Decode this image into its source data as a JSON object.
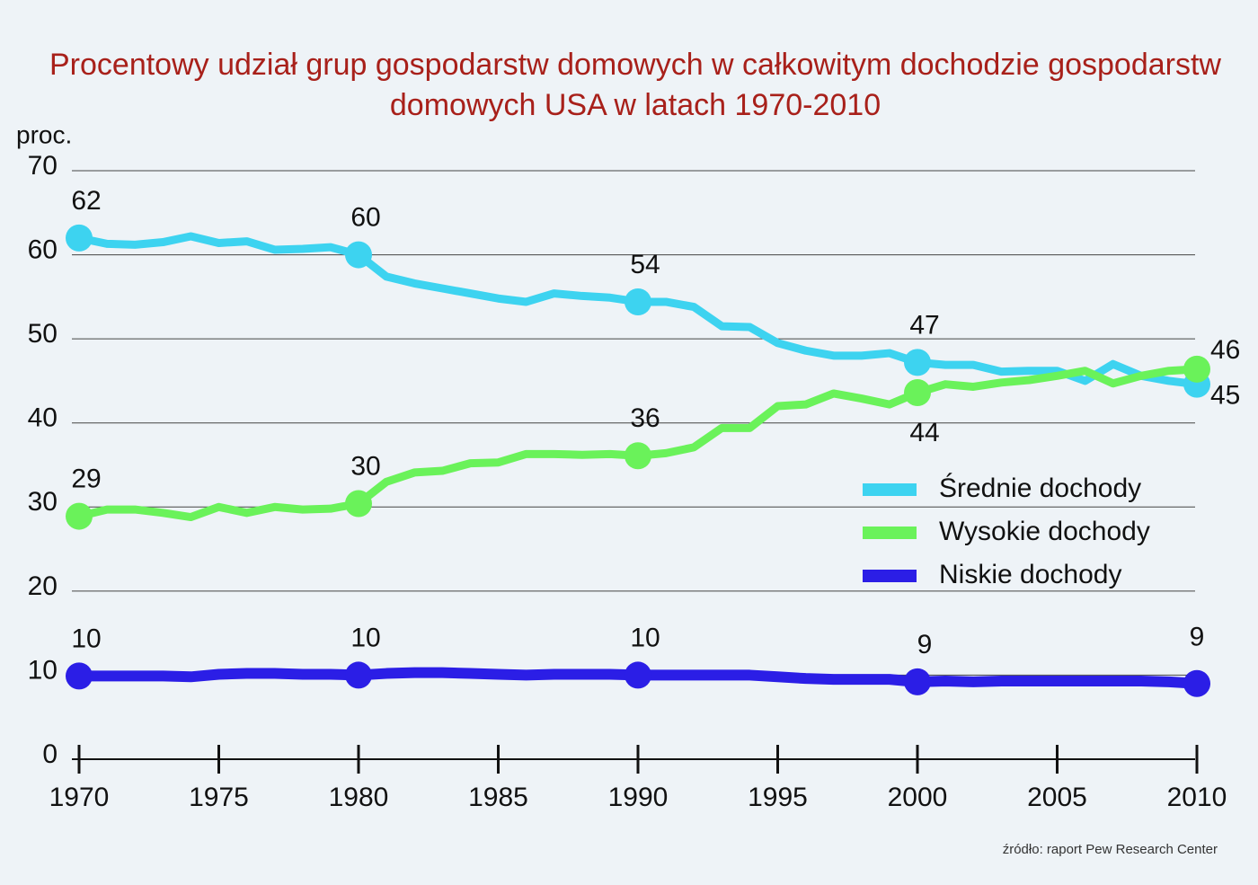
{
  "chart_data": {
    "type": "line",
    "title": "Procentowy udział grup gospodarstw domowych w całkowitym dochodzie gospodarstw domowych USA w latach 1970-2010",
    "y_label": "proc.",
    "source": "źródło: raport Pew Research Center",
    "x": [
      1970,
      1971,
      1972,
      1973,
      1974,
      1975,
      1976,
      1977,
      1978,
      1979,
      1980,
      1981,
      1982,
      1983,
      1984,
      1985,
      1986,
      1987,
      1988,
      1989,
      1990,
      1991,
      1992,
      1993,
      1994,
      1995,
      1996,
      1997,
      1998,
      1999,
      2000,
      2001,
      2002,
      2003,
      2004,
      2005,
      2006,
      2007,
      2008,
      2009,
      2010
    ],
    "xlim": [
      1970,
      2010
    ],
    "xticks": [
      1970,
      1975,
      1980,
      1985,
      1990,
      1995,
      2000,
      2005,
      2010
    ],
    "ylim": [
      0,
      70
    ],
    "yticks": [
      0,
      10,
      20,
      30,
      40,
      50,
      60,
      70
    ],
    "grid": true,
    "legend": "right",
    "series": [
      {
        "name": "Średnie dochody",
        "color": "#3dd3f0",
        "values": [
          62,
          61.3,
          61.2,
          61.5,
          62.2,
          61.4,
          61.6,
          60.6,
          60.7,
          60.9,
          60,
          57.4,
          56.6,
          56,
          55.4,
          54.8,
          54.4,
          55.4,
          55.1,
          54.9,
          54.4,
          54.4,
          53.8,
          51.5,
          51.4,
          49.5,
          48.6,
          48,
          48,
          48.3,
          47.2,
          46.9,
          46.9,
          46.1,
          46.2,
          46.2,
          45,
          47,
          45.6,
          45,
          44.6
        ],
        "value_labels": [
          "62",
          null,
          null,
          null,
          null,
          null,
          null,
          null,
          null,
          null,
          "60",
          null,
          null,
          null,
          null,
          null,
          null,
          null,
          null,
          null,
          "54",
          null,
          null,
          null,
          null,
          null,
          null,
          null,
          null,
          null,
          "47",
          null,
          null,
          null,
          null,
          null,
          null,
          null,
          null,
          null,
          "45"
        ]
      },
      {
        "name": "Wysokie dochody",
        "color": "#6af25a",
        "values": [
          28.9,
          29.7,
          29.7,
          29.3,
          28.8,
          30,
          29.3,
          30,
          29.7,
          29.8,
          30.4,
          33,
          34.1,
          34.3,
          35.2,
          35.3,
          36.3,
          36.3,
          36.2,
          36.3,
          36.1,
          36.4,
          37.1,
          39.4,
          39.4,
          42,
          42.2,
          43.5,
          42.9,
          42.2,
          43.6,
          44.6,
          44.3,
          44.8,
          45.1,
          45.6,
          46.2,
          44.7,
          45.6,
          46.2,
          46.4
        ],
        "value_labels": [
          "29",
          null,
          null,
          null,
          null,
          null,
          null,
          null,
          null,
          null,
          "30",
          null,
          null,
          null,
          null,
          null,
          null,
          null,
          null,
          null,
          "36",
          null,
          null,
          null,
          null,
          null,
          null,
          null,
          null,
          null,
          "44",
          null,
          null,
          null,
          null,
          null,
          null,
          null,
          null,
          null,
          "46"
        ]
      },
      {
        "name": "Niskie dochody",
        "color": "#2b1ee6",
        "values": [
          9.9,
          9.9,
          9.9,
          9.9,
          9.8,
          10.1,
          10.2,
          10.2,
          10.1,
          10.1,
          10,
          10.2,
          10.3,
          10.3,
          10.2,
          10.1,
          10,
          10.1,
          10.1,
          10.1,
          10,
          10,
          10,
          10,
          10,
          9.8,
          9.6,
          9.5,
          9.5,
          9.5,
          9.2,
          9.3,
          9.2,
          9.3,
          9.3,
          9.3,
          9.3,
          9.3,
          9.3,
          9.2,
          9
        ],
        "value_labels": [
          "10",
          null,
          null,
          null,
          null,
          null,
          null,
          null,
          null,
          null,
          "10",
          null,
          null,
          null,
          null,
          null,
          null,
          null,
          null,
          null,
          "10",
          null,
          null,
          null,
          null,
          null,
          null,
          null,
          null,
          null,
          "9",
          null,
          null,
          null,
          null,
          null,
          null,
          null,
          null,
          null,
          "9"
        ]
      }
    ]
  }
}
